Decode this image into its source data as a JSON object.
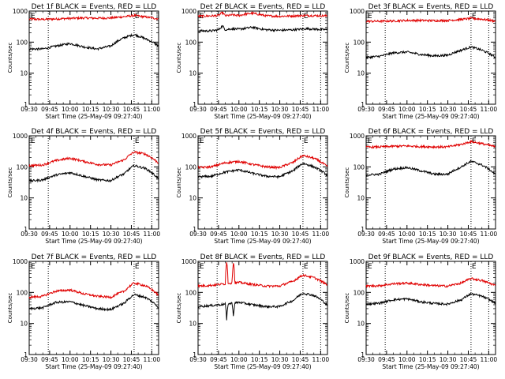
{
  "layout": {
    "colors": {
      "events": "#000000",
      "lld": "#e00000",
      "axis": "#000000",
      "background": "#ffffff"
    }
  },
  "chart_data": [
    {
      "type": "line",
      "title": "Det 1f BLACK = Events, RED = LLD",
      "xlabel": "Start Time (25-May-09 09:27:40)",
      "ylabel": "Counts/sec",
      "x_ticks": [
        "09:30",
        "09:45",
        "10:00",
        "10:15",
        "10:30",
        "10:45",
        "11:00"
      ],
      "x_minutes": [
        0,
        15,
        30,
        45,
        60,
        75,
        90
      ],
      "xlim": [
        0,
        95
      ],
      "ylim": [
        1,
        1000
      ],
      "yscale": "log",
      "y_ticks": [
        "1",
        "10",
        "100",
        "1000"
      ],
      "vlines": [
        {
          "x": 14
        },
        {
          "x": 77,
          "label": "E"
        },
        {
          "x": 90
        }
      ],
      "corner_label": "E",
      "series": [
        {
          "color": "#e00000",
          "x": [
            0,
            10,
            20,
            30,
            40,
            50,
            60,
            70,
            77,
            85,
            95
          ],
          "values": [
            550,
            540,
            560,
            580,
            600,
            590,
            600,
            660,
            720,
            650,
            560
          ]
        },
        {
          "color": "#000000",
          "x": [
            0,
            10,
            20,
            30,
            40,
            50,
            60,
            70,
            77,
            85,
            95
          ],
          "values": [
            60,
            60,
            75,
            90,
            70,
            60,
            75,
            140,
            175,
            130,
            75
          ]
        }
      ]
    },
    {
      "type": "line",
      "title": "Det 2f BLACK = Events, RED = LLD",
      "xlabel": "Start Time (25-May-09 09:27:40)",
      "ylabel": "Counts/sec",
      "x_ticks": [
        "09:30",
        "09:45",
        "10:00",
        "10:15",
        "10:30",
        "10:45",
        "11:00"
      ],
      "x_minutes": [
        0,
        15,
        30,
        45,
        60,
        75,
        90
      ],
      "xlim": [
        0,
        95
      ],
      "ylim": [
        1,
        1000
      ],
      "yscale": "log",
      "y_ticks": [
        "1",
        "10",
        "100",
        "1000"
      ],
      "vlines": [
        {
          "x": 14
        },
        {
          "x": 77,
          "label": "E"
        },
        {
          "x": 90
        }
      ],
      "corner_label": "E",
      "series": [
        {
          "color": "#e00000",
          "x": [
            0,
            10,
            15,
            18,
            20,
            25,
            30,
            35,
            40,
            45,
            50,
            60,
            70,
            80,
            95
          ],
          "values": [
            680,
            700,
            720,
            900,
            700,
            750,
            720,
            800,
            850,
            780,
            700,
            680,
            700,
            720,
            700
          ]
        },
        {
          "color": "#000000",
          "x": [
            0,
            10,
            15,
            18,
            20,
            25,
            30,
            35,
            40,
            45,
            50,
            60,
            70,
            80,
            95
          ],
          "values": [
            230,
            230,
            250,
            330,
            250,
            270,
            260,
            280,
            300,
            270,
            250,
            240,
            250,
            270,
            250
          ]
        }
      ]
    },
    {
      "type": "line",
      "title": "Det 3f BLACK = Events, RED = LLD",
      "xlabel": "Start Time (25-May-09 09:27:40)",
      "ylabel": "Counts/sec",
      "x_ticks": [
        "09:30",
        "09:45",
        "10:00",
        "10:15",
        "10:30",
        "10:45",
        "11:00"
      ],
      "x_minutes": [
        0,
        15,
        30,
        45,
        60,
        75,
        90
      ],
      "xlim": [
        0,
        95
      ],
      "ylim": [
        1,
        1000
      ],
      "yscale": "log",
      "y_ticks": [
        "1",
        "10",
        "100",
        "1000"
      ],
      "vlines": [
        {
          "x": 14
        },
        {
          "x": 77,
          "label": "E"
        },
        {
          "x": 90
        }
      ],
      "corner_label": "E",
      "series": [
        {
          "color": "#e00000",
          "x": [
            0,
            10,
            20,
            30,
            40,
            50,
            60,
            70,
            77,
            85,
            95
          ],
          "values": [
            470,
            470,
            480,
            500,
            500,
            490,
            500,
            540,
            580,
            550,
            470
          ]
        },
        {
          "color": "#000000",
          "x": [
            0,
            10,
            20,
            30,
            40,
            50,
            60,
            70,
            77,
            85,
            95
          ],
          "values": [
            32,
            35,
            45,
            48,
            40,
            36,
            38,
            55,
            70,
            55,
            32
          ]
        }
      ]
    },
    {
      "type": "line",
      "title": "Det 4f BLACK = Events, RED = LLD",
      "xlabel": "Start Time (25-May-09 09:27:40)",
      "ylabel": "Counts/sec",
      "x_ticks": [
        "09:30",
        "09:45",
        "10:00",
        "10:15",
        "10:30",
        "10:45",
        "11:00"
      ],
      "x_minutes": [
        0,
        15,
        30,
        45,
        60,
        75,
        90
      ],
      "xlim": [
        0,
        95
      ],
      "ylim": [
        1,
        1000
      ],
      "yscale": "log",
      "y_ticks": [
        "1",
        "10",
        "100",
        "1000"
      ],
      "vlines": [
        {
          "x": 14
        },
        {
          "x": 77,
          "label": "E"
        },
        {
          "x": 90
        }
      ],
      "corner_label": "E",
      "series": [
        {
          "color": "#e00000",
          "x": [
            0,
            10,
            20,
            30,
            40,
            50,
            60,
            70,
            77,
            85,
            95
          ],
          "values": [
            110,
            115,
            160,
            190,
            150,
            120,
            115,
            170,
            300,
            260,
            130
          ]
        },
        {
          "color": "#000000",
          "x": [
            0,
            10,
            20,
            30,
            40,
            50,
            60,
            70,
            77,
            85,
            95
          ],
          "values": [
            35,
            38,
            55,
            65,
            50,
            38,
            36,
            60,
            110,
            90,
            40
          ]
        }
      ]
    },
    {
      "type": "line",
      "title": "Det 5f BLACK = Events, RED = LLD",
      "xlabel": "Start Time (25-May-09 09:27:40)",
      "ylabel": "Counts/sec",
      "x_ticks": [
        "09:30",
        "09:45",
        "10:00",
        "10:15",
        "10:30",
        "10:45",
        "11:00"
      ],
      "x_minutes": [
        0,
        15,
        30,
        45,
        60,
        75,
        90
      ],
      "xlim": [
        0,
        95
      ],
      "ylim": [
        1,
        1000
      ],
      "yscale": "log",
      "y_ticks": [
        "1",
        "10",
        "100",
        "1000"
      ],
      "vlines": [
        {
          "x": 14
        },
        {
          "x": 77,
          "label": "E"
        },
        {
          "x": 90
        }
      ],
      "corner_label": "E",
      "series": [
        {
          "color": "#e00000",
          "x": [
            0,
            10,
            20,
            30,
            40,
            50,
            60,
            70,
            77,
            85,
            95
          ],
          "values": [
            95,
            100,
            135,
            150,
            120,
            100,
            95,
            140,
            230,
            190,
            100
          ]
        },
        {
          "color": "#000000",
          "x": [
            0,
            10,
            20,
            30,
            40,
            50,
            60,
            70,
            77,
            85,
            95
          ],
          "values": [
            48,
            50,
            68,
            80,
            62,
            50,
            48,
            75,
            130,
            100,
            52
          ]
        }
      ]
    },
    {
      "type": "line",
      "title": "Det 6f BLACK = Events, RED = LLD",
      "xlabel": "Start Time (25-May-09 09:27:40)",
      "ylabel": "Counts/sec",
      "x_ticks": [
        "09:30",
        "09:45",
        "10:00",
        "10:15",
        "10:30",
        "10:45",
        "11:00"
      ],
      "x_minutes": [
        0,
        15,
        30,
        45,
        60,
        75,
        90
      ],
      "xlim": [
        0,
        95
      ],
      "ylim": [
        1,
        1000
      ],
      "yscale": "log",
      "y_ticks": [
        "1",
        "10",
        "100",
        "1000"
      ],
      "vlines": [
        {
          "x": 14
        },
        {
          "x": 77,
          "label": "E"
        },
        {
          "x": 90
        }
      ],
      "corner_label": "E",
      "series": [
        {
          "color": "#e00000",
          "x": [
            0,
            10,
            20,
            30,
            40,
            50,
            60,
            70,
            77,
            85,
            95
          ],
          "values": [
            430,
            440,
            460,
            470,
            450,
            440,
            440,
            530,
            650,
            560,
            440
          ]
        },
        {
          "color": "#000000",
          "x": [
            0,
            10,
            20,
            30,
            40,
            50,
            60,
            70,
            77,
            85,
            95
          ],
          "values": [
            55,
            58,
            85,
            95,
            75,
            58,
            58,
            100,
            150,
            115,
            55
          ]
        }
      ]
    },
    {
      "type": "line",
      "title": "Det 7f BLACK = Events, RED = LLD",
      "xlabel": "Start Time (25-May-09 09:27:40)",
      "ylabel": "Counts/sec",
      "x_ticks": [
        "09:30",
        "09:45",
        "10:00",
        "10:15",
        "10:30",
        "10:45",
        "11:00"
      ],
      "x_minutes": [
        0,
        15,
        30,
        45,
        60,
        75,
        90
      ],
      "xlim": [
        0,
        95
      ],
      "ylim": [
        1,
        1000
      ],
      "yscale": "log",
      "y_ticks": [
        "1",
        "10",
        "100",
        "1000"
      ],
      "vlines": [
        {
          "x": 14
        },
        {
          "x": 77,
          "label": "E"
        },
        {
          "x": 90
        }
      ],
      "corner_label": "E",
      "series": [
        {
          "color": "#e00000",
          "x": [
            0,
            10,
            20,
            30,
            40,
            50,
            60,
            70,
            77,
            85,
            95
          ],
          "values": [
            70,
            75,
            110,
            120,
            90,
            75,
            70,
            110,
            200,
            165,
            80
          ]
        },
        {
          "color": "#000000",
          "x": [
            0,
            10,
            20,
            30,
            40,
            50,
            60,
            70,
            77,
            85,
            95
          ],
          "values": [
            30,
            32,
            48,
            50,
            38,
            30,
            28,
            45,
            85,
            70,
            32
          ]
        }
      ]
    },
    {
      "type": "line",
      "title": "Det 8f BLACK = Events, RED = LLD",
      "xlabel": "Start Time (25-May-09 09:27:40)",
      "ylabel": "Counts/sec",
      "x_ticks": [
        "09:30",
        "09:45",
        "10:00",
        "10:15",
        "10:30",
        "10:45",
        "11:00"
      ],
      "x_minutes": [
        0,
        15,
        30,
        45,
        60,
        75,
        90
      ],
      "xlim": [
        0,
        95
      ],
      "ylim": [
        1,
        1000
      ],
      "yscale": "log",
      "y_ticks": [
        "1",
        "10",
        "100",
        "1000"
      ],
      "vlines": [
        {
          "x": 14
        },
        {
          "x": 77,
          "label": "E"
        },
        {
          "x": 90
        }
      ],
      "corner_label": "E",
      "series": [
        {
          "color": "#e00000",
          "x": [
            0,
            10,
            20,
            21,
            22,
            25,
            26,
            27,
            30,
            40,
            50,
            60,
            70,
            77,
            85,
            95
          ],
          "values": [
            160,
            170,
            190,
            1000,
            200,
            200,
            1000,
            200,
            210,
            180,
            160,
            160,
            230,
            360,
            300,
            170
          ]
        },
        {
          "color": "#000000",
          "x": [
            0,
            10,
            20,
            21,
            22,
            25,
            26,
            27,
            30,
            40,
            50,
            60,
            70,
            77,
            85,
            95
          ],
          "values": [
            35,
            38,
            42,
            12,
            42,
            45,
            15,
            45,
            48,
            40,
            35,
            35,
            55,
            95,
            80,
            38
          ]
        }
      ]
    },
    {
      "type": "line",
      "title": "Det 9f BLACK = Events, RED = LLD",
      "xlabel": "Start Time (25-May-09 09:27:40)",
      "ylabel": "Counts/sec",
      "x_ticks": [
        "09:30",
        "09:45",
        "10:00",
        "10:15",
        "10:30",
        "10:45",
        "11:00"
      ],
      "x_minutes": [
        0,
        15,
        30,
        45,
        60,
        75,
        90
      ],
      "xlim": [
        0,
        95
      ],
      "ylim": [
        1,
        1000
      ],
      "yscale": "log",
      "y_ticks": [
        "1",
        "10",
        "100",
        "1000"
      ],
      "vlines": [
        {
          "x": 14
        },
        {
          "x": 77,
          "label": "E"
        },
        {
          "x": 90
        }
      ],
      "corner_label": "E",
      "series": [
        {
          "color": "#e00000",
          "x": [
            0,
            10,
            20,
            30,
            40,
            50,
            60,
            70,
            77,
            85,
            95
          ],
          "values": [
            160,
            165,
            190,
            200,
            180,
            165,
            160,
            200,
            280,
            240,
            165
          ]
        },
        {
          "color": "#000000",
          "x": [
            0,
            10,
            20,
            30,
            40,
            50,
            60,
            70,
            77,
            85,
            95
          ],
          "values": [
            42,
            45,
            58,
            62,
            50,
            44,
            42,
            58,
            90,
            75,
            44
          ]
        }
      ]
    }
  ]
}
